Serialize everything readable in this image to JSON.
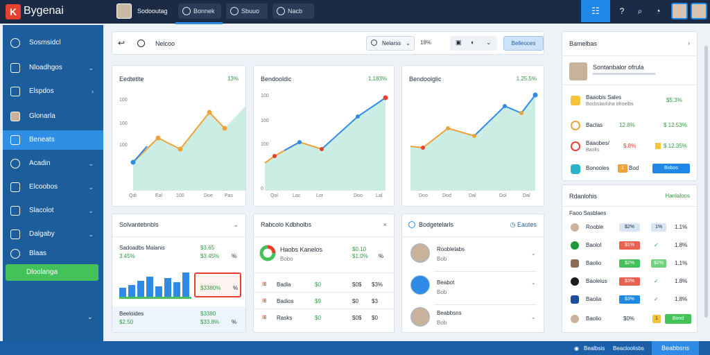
{
  "app": {
    "brand": "Bygenai",
    "logo_letter": "K"
  },
  "topbar": {
    "user": "Sodooutag",
    "buttons": [
      {
        "label": "Bonnek",
        "icon": "check-icon"
      },
      {
        "label": "Sbuuo",
        "icon": "clock-icon"
      },
      {
        "label": "Nacb",
        "icon": "globe-icon"
      }
    ],
    "grid_label": "☷"
  },
  "sidebar": {
    "items": [
      {
        "label": "Sosmsidcl",
        "icon": "globe-icon"
      },
      {
        "label": "Nloadhgos",
        "icon": "hand-icon"
      },
      {
        "label": "Elspdos",
        "icon": "chart-icon"
      },
      {
        "label": "Glonarla",
        "icon": "user-icon"
      },
      {
        "label": "Beneats",
        "icon": "calendar-icon"
      },
      {
        "label": "Acadin",
        "icon": "circle-icon"
      },
      {
        "label": "Elcoobos",
        "icon": "hand-icon"
      },
      {
        "label": "Slacolot",
        "icon": "chat-icon"
      },
      {
        "label": "Dalgaby",
        "icon": "shield-icon"
      },
      {
        "label": "Blaas",
        "icon": "pin-icon"
      }
    ],
    "green_label": "Dloolanga"
  },
  "toolbar": {
    "title": "Nelcoo",
    "search": "Nelarss",
    "pct": "18%",
    "button": "Belleoces"
  },
  "charts": [
    {
      "title": "Eedtetlte",
      "value": "13%",
      "ticks": [
        "100",
        "100",
        "100"
      ],
      "xt": [
        "Qdi",
        "Eal",
        "100",
        "Doe",
        "Pas"
      ]
    },
    {
      "title": "Bendooldic",
      "value": "1.183%",
      "ticks": [
        "100",
        "100",
        "100",
        "0"
      ],
      "xt": [
        "Qol",
        "Lac",
        "Lor",
        "Doo",
        "Lal"
      ]
    },
    {
      "title": "Bendoolglic",
      "value": "1.25.5%",
      "ticks": [],
      "xt": [
        "Doo",
        "Dod",
        "Dal",
        "Dol",
        "Dal"
      ]
    }
  ],
  "mid1": {
    "title": "Solvantebnbls",
    "row1_title": "Sadoadbs Malanis",
    "row1_sub": "3.45%",
    "row1_v1": "$3,65",
    "row1_v2": "$3.45%",
    "row1_v3": "%",
    "tooltip": "$3380%",
    "tooltip2": "%",
    "row2_title": "Beeloides",
    "row2_sub": "$2.50",
    "row2_v1": "$3380",
    "row2_v2": "$33.8%",
    "row2_v3": "%"
  },
  "mid2": {
    "title": "Rabcolo Kdbholbs",
    "hero_title": "Haobs Kanelos",
    "hero_sub": "Bobo",
    "hero_v1": "$0.10",
    "hero_v2": "$1.0%",
    "hero_v3": "%",
    "rows": [
      {
        "label": "Badla",
        "a": "$0",
        "b": "$0$",
        "c": "$3%"
      },
      {
        "label": "Badios",
        "a": "$9",
        "b": "$0",
        "c": "$3"
      },
      {
        "label": "Rasks",
        "a": "$0",
        "b": "$0$",
        "c": "$0"
      }
    ]
  },
  "mid3": {
    "title": "Bodgetelarls",
    "link": "Eautes",
    "rows": [
      {
        "title": "Rooblelabs",
        "sub": "Bob"
      },
      {
        "title": "Beabot",
        "sub": "Bob"
      },
      {
        "title": "Beabbsns",
        "sub": "Bob"
      }
    ]
  },
  "right1": {
    "title": "Bamelbas",
    "person": "Sontanbalor ofrula",
    "rows": [
      {
        "title": "Baaobis Sales",
        "sub": "Bocbslaolsha ofroelbs",
        "v": "$5.3%"
      },
      {
        "title": "Baclas",
        "v1": "12.8%",
        "v2": "$ 12.53%"
      },
      {
        "title": "Baaobes/",
        "sub": "Baoks",
        "v1": "$.8%",
        "v2": "$ 12.35%"
      },
      {
        "title": "Bonooles",
        "v1": "Bod",
        "v2": "Bobos"
      }
    ]
  },
  "right2": {
    "title": "Rdanlohis",
    "link": "Hanlaloos",
    "sub": "Faoo Sasblaes",
    "rows": [
      {
        "label": "Rooble",
        "b1": "$2%",
        "b2": "1%",
        "v": "1.1%"
      },
      {
        "label": "Baolol",
        "b1": "$1%",
        "b2": "✓",
        "v": "1.8%"
      },
      {
        "label": "Baolio",
        "b1": "$2%",
        "b2": "$2%",
        "v": "1.1%"
      },
      {
        "label": "Baoleius",
        "b1": "$3%",
        "b2": "✓",
        "v": "1.8%"
      },
      {
        "label": "Baolia",
        "b1": "$3%",
        "b2": "✓",
        "v": "1.8%"
      },
      {
        "label": "Baolio",
        "b1": "$0%",
        "b2": "1",
        "v": "Bond"
      }
    ]
  },
  "bottombar": {
    "left": "Bealbsis",
    "mid": "Beacloolisbs",
    "btn": "Beabbsns"
  },
  "colors": {
    "primary": "#1f87e5",
    "green": "#45c15a",
    "orange": "#f0a23a",
    "red": "#d2452f",
    "navy": "#1b2b45"
  }
}
